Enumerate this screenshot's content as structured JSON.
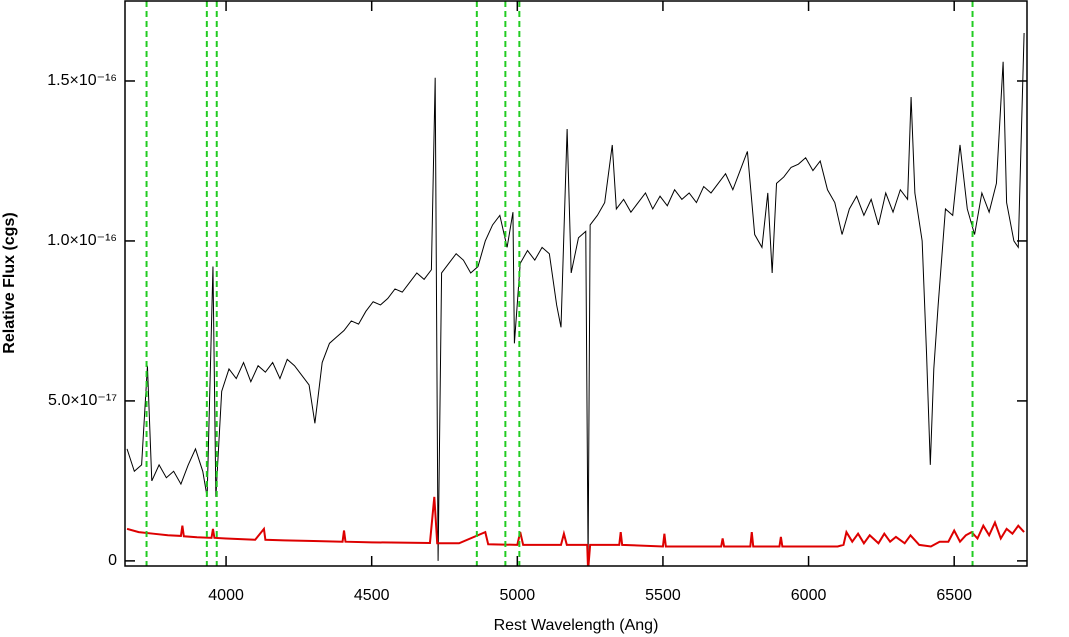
{
  "chart_data": {
    "type": "line",
    "xlabel": "Rest Wavelength (Ang)",
    "ylabel": "Relative Flux (cgs)",
    "xlim": [
      3653,
      6750
    ],
    "ylim": [
      -1.6e-18,
      1.75e-16
    ],
    "xticks": [
      4000,
      4500,
      5000,
      5500,
      6000,
      6500
    ],
    "yticks": [
      0,
      {
        "value": 5e-17,
        "label": "5.0×10⁻¹⁷"
      },
      {
        "value": 1e-16,
        "label": "1.0×10⁻¹⁶"
      },
      {
        "value": 1.5e-16,
        "label": "1.5×10⁻¹⁶"
      }
    ],
    "vlines": [
      3727,
      3934,
      3968,
      4861,
      4959,
      5007,
      6563
    ],
    "vline_color": "#22cc22",
    "series": [
      {
        "color": "#000000",
        "x": [
          3660,
          3685,
          3710,
          3730,
          3745,
          3770,
          3795,
          3820,
          3845,
          3870,
          3895,
          3920,
          3935,
          3955,
          3965,
          3985,
          4010,
          4035,
          4060,
          4085,
          4110,
          4135,
          4160,
          4185,
          4210,
          4235,
          4260,
          4285,
          4305,
          4330,
          4355,
          4380,
          4405,
          4430,
          4455,
          4480,
          4505,
          4530,
          4555,
          4580,
          4605,
          4630,
          4655,
          4680,
          4705,
          4718,
          4728,
          4740,
          4765,
          4790,
          4815,
          4840,
          4865,
          4890,
          4915,
          4940,
          4965,
          4985,
          4990,
          5010,
          5035,
          5060,
          5085,
          5110,
          5135,
          5150,
          5171,
          5185,
          5210,
          5235,
          5243,
          5250,
          5275,
          5300,
          5326,
          5340,
          5365,
          5390,
          5415,
          5440,
          5465,
          5490,
          5515,
          5540,
          5565,
          5590,
          5615,
          5640,
          5665,
          5690,
          5715,
          5740,
          5765,
          5790,
          5815,
          5840,
          5860,
          5875,
          5890,
          5915,
          5940,
          5965,
          5990,
          6015,
          6040,
          6065,
          6090,
          6115,
          6140,
          6165,
          6190,
          6215,
          6240,
          6265,
          6290,
          6315,
          6340,
          6352,
          6365,
          6390,
          6405,
          6418,
          6430,
          6445,
          6470,
          6495,
          6520,
          6545,
          6570,
          6595,
          6620,
          6645,
          6668,
          6680,
          6705,
          6720,
          6740
        ],
        "values": [
          3.5e-17,
          2.8e-17,
          3e-17,
          6.1e-17,
          2.5e-17,
          3e-17,
          2.6e-17,
          2.8e-17,
          2.4e-17,
          3e-17,
          3.5e-17,
          2.8e-17,
          2e-17,
          9.2e-17,
          2e-17,
          5.3e-17,
          6e-17,
          5.7e-17,
          6.2e-17,
          5.6e-17,
          6.1e-17,
          5.9e-17,
          6.2e-17,
          5.7e-17,
          6.3e-17,
          6.1e-17,
          5.8e-17,
          5.5e-17,
          4.3e-17,
          6.2e-17,
          6.8e-17,
          7e-17,
          7.2e-17,
          7.5e-17,
          7.4e-17,
          7.8e-17,
          8.1e-17,
          8e-17,
          8.2e-17,
          8.5e-17,
          8.4e-17,
          8.7e-17,
          9e-17,
          8.8e-17,
          9.1e-17,
          1.51e-16,
          0,
          9e-17,
          9.3e-17,
          9.6e-17,
          9.4e-17,
          9e-17,
          9.2e-17,
          1e-16,
          1.05e-16,
          1.08e-16,
          9.8e-17,
          1.09e-16,
          6.8e-17,
          9.3e-17,
          9.7e-17,
          9.4e-17,
          9.8e-17,
          9.6e-17,
          8e-17,
          7.3e-17,
          1.35e-16,
          9e-17,
          1.01e-16,
          1.03e-16,
          0,
          1.05e-16,
          1.08e-16,
          1.12e-16,
          1.3e-16,
          1.1e-16,
          1.13e-16,
          1.09e-16,
          1.12e-16,
          1.15e-16,
          1.1e-16,
          1.14e-16,
          1.11e-16,
          1.16e-16,
          1.13e-16,
          1.15e-16,
          1.12e-16,
          1.17e-16,
          1.15e-16,
          1.18e-16,
          1.21e-16,
          1.16e-16,
          1.22e-16,
          1.28e-16,
          1.02e-16,
          9.8e-17,
          1.15e-16,
          9e-17,
          1.18e-16,
          1.2e-16,
          1.23e-16,
          1.24e-16,
          1.26e-16,
          1.22e-16,
          1.25e-16,
          1.16e-16,
          1.12e-16,
          1.02e-16,
          1.1e-16,
          1.14e-16,
          1.08e-16,
          1.13e-16,
          1.05e-16,
          1.15e-16,
          1.09e-16,
          1.16e-16,
          1.13e-16,
          1.45e-16,
          1.15e-16,
          1e-16,
          6.5e-17,
          3e-17,
          6e-17,
          8e-17,
          1.1e-16,
          1.08e-16,
          1.3e-16,
          1.1e-16,
          1.02e-16,
          1.15e-16,
          1.09e-16,
          1.18e-16,
          1.56e-16,
          1.12e-16,
          1e-16,
          9.8e-17,
          1.65e-16
        ]
      },
      {
        "color": "#dd0000",
        "x": [
          3660,
          3700,
          3750,
          3800,
          3845,
          3850,
          3855,
          3900,
          3950,
          3955,
          3960,
          4000,
          4100,
          4130,
          4135,
          4200,
          4300,
          4400,
          4405,
          4410,
          4500,
          4600,
          4700,
          4715,
          4725,
          4800,
          4890,
          4900,
          5000,
          5010,
          5020,
          5150,
          5160,
          5170,
          5240,
          5243,
          5250,
          5350,
          5355,
          5360,
          5500,
          5505,
          5510,
          5700,
          5705,
          5710,
          5800,
          5805,
          5810,
          5900,
          5905,
          5910,
          6100,
          6120,
          6130,
          6150,
          6170,
          6190,
          6210,
          6240,
          6260,
          6280,
          6300,
          6330,
          6350,
          6380,
          6420,
          6450,
          6480,
          6500,
          6520,
          6540,
          6560,
          6580,
          6600,
          6620,
          6640,
          6660,
          6680,
          6700,
          6720,
          6740
        ],
        "values": [
          1e-17,
          9e-18,
          8.5e-18,
          8e-18,
          7.8e-18,
          1.1e-17,
          7.7e-18,
          7.4e-18,
          7.2e-18,
          1e-17,
          7.2e-18,
          7e-18,
          6.6e-18,
          1e-17,
          6.6e-18,
          6.4e-18,
          6.2e-18,
          6e-18,
          9.5e-18,
          6e-18,
          5.8e-18,
          5.7e-18,
          5.6e-18,
          2e-17,
          5.5e-18,
          5.5e-18,
          9e-18,
          5.2e-18,
          5e-18,
          9e-18,
          5e-18,
          5e-18,
          8.5e-18,
          5e-18,
          5e-18,
          -3e-18,
          5e-18,
          5e-18,
          9e-18,
          5e-18,
          4.5e-18,
          8.5e-18,
          4.5e-18,
          4.5e-18,
          7e-18,
          4.5e-18,
          4.5e-18,
          9e-18,
          4.5e-18,
          4.5e-18,
          7.5e-18,
          4.5e-18,
          4.5e-18,
          5e-18,
          9e-18,
          6e-18,
          8.5e-18,
          5.5e-18,
          8e-18,
          5.5e-18,
          8.5e-18,
          6e-18,
          7.5e-18,
          5.5e-18,
          8e-18,
          5e-18,
          4.5e-18,
          6e-18,
          6e-18,
          9.5e-18,
          6e-18,
          8e-18,
          9e-18,
          7e-18,
          1.1e-17,
          8e-18,
          1.2e-17,
          7e-18,
          1e-17,
          8.5e-18,
          1.1e-17,
          9e-18
        ]
      }
    ]
  }
}
